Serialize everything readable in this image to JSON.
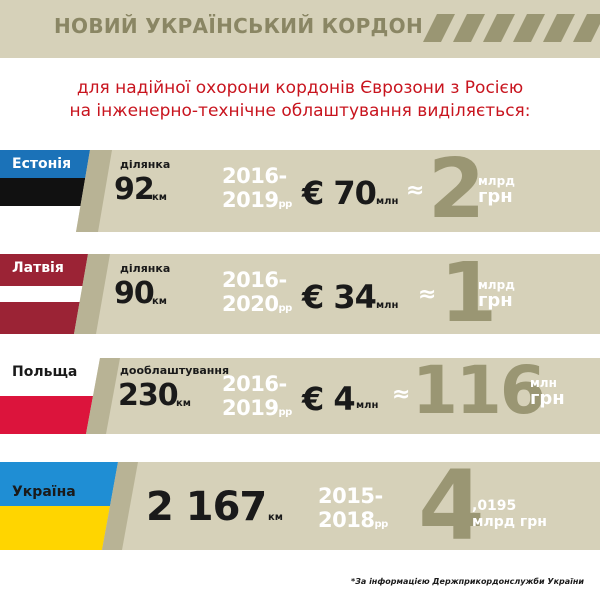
{
  "header": {
    "title": "НОВИЙ УКРАЇНСЬКИЙ КОРДОН",
    "brand_color": "#8a8664"
  },
  "subtitle": {
    "line1": "для надійної охорони кордонів Єврозони з Росією",
    "line2": "на інженерно-технічне облаштування виділяється:"
  },
  "rows": [
    {
      "country": "Естонія",
      "segment_label": "ділянка",
      "length": "92",
      "length_unit": "км",
      "years_line1": "2016-",
      "years_line2": "2019",
      "years_suffix": "рр",
      "euro_amount": "€ 70",
      "euro_unit": "млн",
      "approx": "≈",
      "uah_amount": "2",
      "uah_unit_top": "млрд",
      "uah_unit_bottom": "грн"
    },
    {
      "country": "Латвія",
      "segment_label": "ділянка",
      "length": "90",
      "length_unit": "км",
      "years_line1": "2016-",
      "years_line2": "2020",
      "years_suffix": "рр",
      "euro_amount": "€ 34",
      "euro_unit": "млн",
      "approx": "≈",
      "uah_amount": "1",
      "uah_unit_top": "млрд",
      "uah_unit_bottom": "грн"
    },
    {
      "country": "Польща",
      "segment_label": "дооблаштування",
      "length": "230",
      "length_unit": "км",
      "years_line1": "2016-",
      "years_line2": "2019",
      "years_suffix": "рр",
      "euro_amount": "€ 4",
      "euro_unit": "млн",
      "approx": "≈",
      "uah_amount": "116",
      "uah_unit_top": "млн",
      "uah_unit_bottom": "грн"
    },
    {
      "country": "Україна",
      "length": "2 167",
      "length_unit": "км",
      "years_line1": "2015-",
      "years_line2": "2018",
      "years_suffix": "рр",
      "uah_amount": "4",
      "uah_unit_top": ",0195",
      "uah_unit_bottom": "млрд грн"
    }
  ],
  "footnote": "*За інформацією Держприкордонслужби України",
  "colors": {
    "panel": "#d6d1b9",
    "accent_red": "#c8141e",
    "estonia_blue": "#1b72b8",
    "latvia_red": "#9b2335",
    "poland_red": "#dc143c",
    "ukraine_blue": "#1f8ed4",
    "ukraine_yellow": "#ffd500"
  }
}
